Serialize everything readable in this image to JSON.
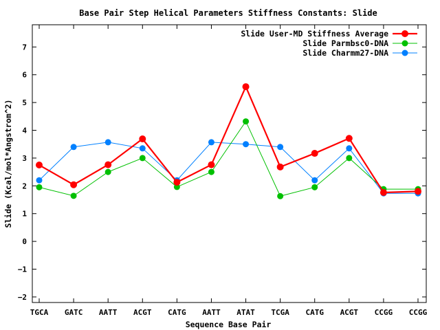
{
  "chart_data": {
    "type": "line",
    "title": "Base Pair Step Helical Parameters Stiffness Constants: Slide",
    "xlabel": "Sequence Base Pair",
    "ylabel": "Slide (Kcal/mol*Angstrom^2)",
    "ylim": [
      -2.2,
      7.8
    ],
    "yticks": [
      "−2",
      "−1",
      "0",
      "1",
      "2",
      "3",
      "4",
      "5",
      "6",
      "7"
    ],
    "grid": false,
    "legend_position": "top-right",
    "categories": [
      "TGCA",
      "GATC",
      "AATT",
      "ACGT",
      "CATG",
      "AATT",
      "ATAT",
      "TCGA",
      "CATG",
      "ACGT",
      "CCGG",
      "CCGG"
    ],
    "series": [
      {
        "name": "Slide User-MD Stiffness Average",
        "color": "#ff0000",
        "values": [
          2.75,
          2.04,
          2.76,
          3.69,
          2.13,
          2.76,
          5.57,
          2.68,
          3.17,
          3.71,
          1.76,
          1.8
        ]
      },
      {
        "name": "Slide Parmbsc0-DNA",
        "color": "#00c000",
        "values": [
          1.95,
          1.64,
          2.5,
          3.0,
          1.96,
          2.5,
          4.32,
          1.63,
          1.95,
          3.0,
          1.88,
          1.88
        ]
      },
      {
        "name": "Slide Charmm27-DNA",
        "color": "#0080ff",
        "values": [
          2.2,
          3.4,
          3.57,
          3.35,
          2.2,
          3.57,
          3.5,
          3.4,
          2.2,
          3.35,
          1.73,
          1.73
        ]
      }
    ]
  }
}
